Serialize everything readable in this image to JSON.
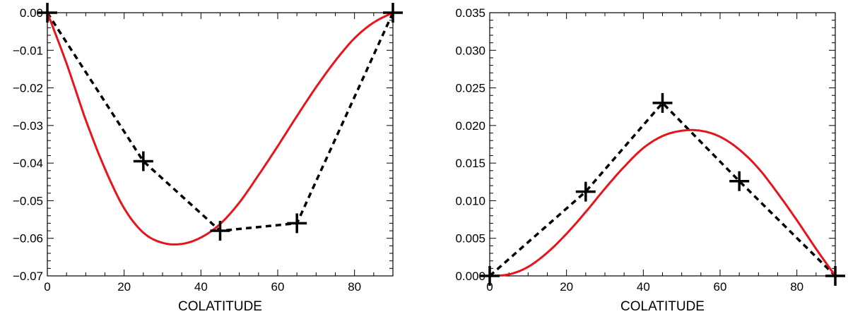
{
  "chart_data": [
    {
      "type": "line",
      "title": "",
      "xlabel": "COLATITUDE",
      "ylabel": "",
      "xlim": [
        0,
        90
      ],
      "ylim": [
        -0.07,
        0.0
      ],
      "xticks": [
        0,
        20,
        40,
        60,
        80
      ],
      "yticks": [
        0.0,
        -0.01,
        -0.02,
        -0.03,
        -0.04,
        -0.05,
        -0.06,
        -0.07
      ],
      "ytick_labels": [
        "0.00",
        "−0.01",
        "−0.02",
        "−0.03",
        "−0.04",
        "−0.05",
        "−0.06",
        "−0.07"
      ],
      "xtick_labels": [
        "0",
        "20",
        "40",
        "60",
        "80"
      ],
      "grid": false,
      "series": [
        {
          "style": "dashed-with-plus-markers",
          "color": "#000000",
          "x": [
            0,
            25,
            45,
            65,
            90
          ],
          "y": [
            0.0,
            -0.0395,
            -0.058,
            -0.056,
            0.0
          ]
        },
        {
          "style": "solid",
          "color": "#e8141b",
          "x": [
            0,
            5,
            10,
            15,
            20,
            25,
            30,
            35,
            40,
            45,
            50,
            55,
            60,
            65,
            70,
            75,
            80,
            85,
            90
          ],
          "y": [
            0.0,
            -0.0135,
            -0.0285,
            -0.0415,
            -0.052,
            -0.0585,
            -0.0612,
            -0.0615,
            -0.0598,
            -0.0562,
            -0.0505,
            -0.0432,
            -0.0355,
            -0.0275,
            -0.0198,
            -0.0128,
            -0.0068,
            -0.0026,
            0.0
          ]
        }
      ]
    },
    {
      "type": "line",
      "title": "",
      "xlabel": "COLATITUDE",
      "ylabel": "",
      "xlim": [
        0,
        90
      ],
      "ylim": [
        0.0,
        0.035
      ],
      "xticks": [
        0,
        20,
        40,
        60,
        80
      ],
      "yticks": [
        0.0,
        0.005,
        0.01,
        0.015,
        0.02,
        0.025,
        0.03,
        0.035
      ],
      "ytick_labels": [
        "0.000",
        "0.005",
        "0.010",
        "0.015",
        "0.020",
        "0.025",
        "0.030",
        "0.035"
      ],
      "xtick_labels": [
        "0",
        "20",
        "40",
        "60",
        "80"
      ],
      "grid": false,
      "series": [
        {
          "style": "dashed-with-plus-markers",
          "color": "#000000",
          "x": [
            0,
            25,
            45,
            65,
            90
          ],
          "y": [
            0.0,
            0.0112,
            0.023,
            0.0126,
            0.0
          ]
        },
        {
          "style": "solid",
          "color": "#e8141b",
          "x": [
            0,
            5,
            10,
            15,
            20,
            25,
            30,
            35,
            40,
            45,
            50,
            55,
            60,
            65,
            70,
            75,
            80,
            85,
            90
          ],
          "y": [
            0.0,
            0.0002,
            0.0012,
            0.0031,
            0.0056,
            0.0085,
            0.0116,
            0.0145,
            0.017,
            0.0186,
            0.0193,
            0.0193,
            0.0185,
            0.0168,
            0.0143,
            0.011,
            0.0074,
            0.0036,
            0.0
          ]
        }
      ]
    }
  ]
}
